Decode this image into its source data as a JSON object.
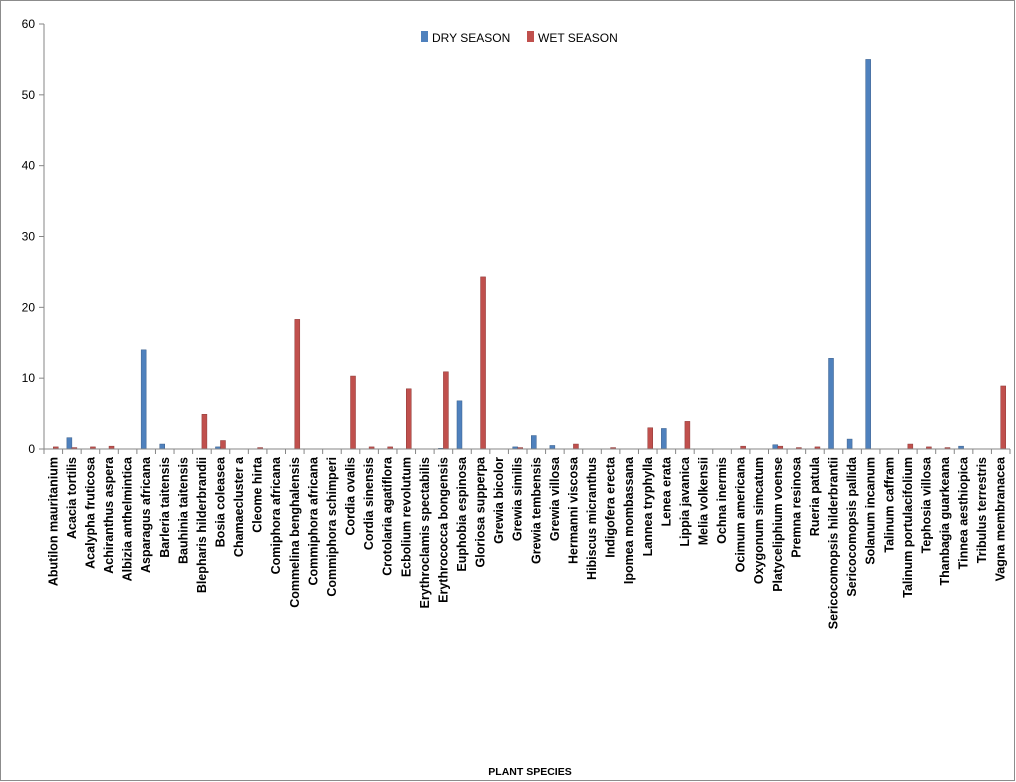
{
  "chart_data": {
    "type": "bar",
    "title": "",
    "xlabel": "PLANT SPECIES",
    "ylabel": "",
    "ylim": [
      0,
      60
    ],
    "yticks": [
      0,
      10,
      20,
      30,
      40,
      50,
      60
    ],
    "grid": false,
    "legend_position": "top-center",
    "categories": [
      "Abutilon mauritanium",
      "Acacia tortilis",
      "Acalypha fruticosa",
      "Achiranthus aspera",
      "Albizia anthelmintica",
      "Asparagus africana",
      "Barleria taitensis",
      "Bauhinia taitensis",
      "Blepharis hilderbrandii",
      "Bosia coleasea",
      "Chamaecluster a",
      "Cleome hirta",
      "Comiphora africana",
      "Commelina benghalensis",
      "Commiphora africana",
      "Commiphora schimperi",
      "Cordia ovalis",
      "Cordia sinensis",
      "Crotolaria agatiflora",
      "Ecbolium revolutum",
      "Erythroclamis spectabilis",
      "Erythrococca bongensis",
      "Euphobia espinosa",
      "Gloriosa supperpa",
      "Grewia bicolor",
      "Grewia similis",
      "Grewia tembensis",
      "Grewia villosa",
      "Hermanni viscosa",
      "Hibiscus micranthus",
      "Indigofera erecta",
      "Ipomea mombassana",
      "Lannea tryphylla",
      "Lenea erata",
      "Lippia javanica",
      "Melia volkensii",
      "Ochna inermis",
      "Ocimum americana",
      "Oxygonum simcatum",
      "Platyceliphium voense",
      "Premna resinosa",
      "Rueria patula",
      "Sericocomopsis hilderbrantii",
      "Sericocomopsis pallida",
      "Solanum incanum",
      "Talinum caffram",
      "Talinum portulacifolium",
      "Tephosia villosa",
      "Thanbagia guarkeana",
      "Tinnea aesthiopica",
      "Tribulus terrestris",
      "Vagna membranacea"
    ],
    "series": [
      {
        "name": "DRY SEASON",
        "color": "#4f81bd",
        "values": [
          0,
          1.6,
          0,
          0,
          0,
          14.0,
          0.7,
          0,
          0,
          0.3,
          0,
          0,
          0,
          0,
          0,
          0,
          0,
          0,
          0,
          0,
          0,
          0.1,
          6.8,
          0,
          0,
          0.3,
          1.9,
          0.5,
          0,
          0,
          0,
          0,
          0,
          2.9,
          0,
          0,
          0,
          0,
          0,
          0.6,
          0,
          0,
          12.8,
          1.4,
          55.0,
          0,
          0,
          0,
          0,
          0.4,
          0,
          0
        ]
      },
      {
        "name": "WET SEASON",
        "color": "#c0504d",
        "values": [
          0.3,
          0.2,
          0.3,
          0.4,
          0,
          0,
          0,
          0,
          4.9,
          1.2,
          0,
          0.2,
          0,
          18.3,
          0,
          0,
          10.3,
          0.3,
          0.3,
          8.5,
          0,
          10.9,
          0,
          24.3,
          0,
          0.2,
          0,
          0,
          0.7,
          0,
          0.2,
          0,
          3.0,
          0,
          3.9,
          0,
          0,
          0.4,
          0,
          0.4,
          0.2,
          0.3,
          0,
          0,
          0,
          0,
          0.7,
          0.3,
          0.2,
          0,
          0,
          8.9
        ]
      }
    ]
  }
}
